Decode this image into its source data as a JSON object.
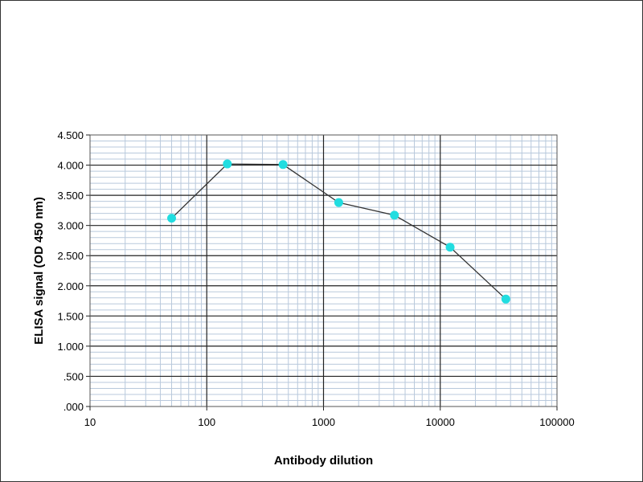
{
  "chart_data": {
    "type": "scatter",
    "title": "",
    "xlabel": "Antibody dilution",
    "ylabel": "ELISA signal (OD 450 nm)",
    "x_scale": "log",
    "xlim": [
      10,
      100000
    ],
    "ylim": [
      0,
      4.5
    ],
    "grid": true,
    "legend": "none",
    "x_tick_labels": [
      "10",
      "100",
      "1000",
      "10000",
      "100000"
    ],
    "y_tick_labels": [
      ".000",
      ".500",
      "1.000",
      "1.500",
      "2.000",
      "2.500",
      "3.000",
      "3.500",
      "4.000",
      "4.500"
    ],
    "series": [
      {
        "line_color": "#333333",
        "marker_color": "#22dde0",
        "points": [
          {
            "x": 50,
            "y": 3.12
          },
          {
            "x": 150,
            "y": 4.02
          },
          {
            "x": 450,
            "y": 4.01
          },
          {
            "x": 1350,
            "y": 3.38
          },
          {
            "x": 4050,
            "y": 3.17
          },
          {
            "x": 12150,
            "y": 2.64
          },
          {
            "x": 36450,
            "y": 1.78
          }
        ]
      }
    ]
  }
}
